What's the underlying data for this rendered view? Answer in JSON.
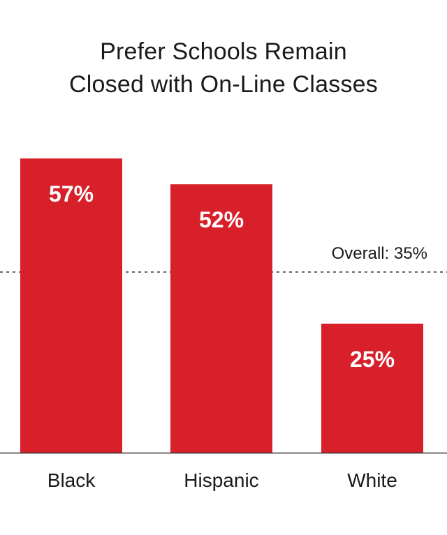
{
  "chart_data": {
    "type": "bar",
    "title": [
      "Prefer Schools Remain",
      "Closed with On-Line Classes"
    ],
    "categories": [
      "Black",
      "Hispanic",
      "White"
    ],
    "values": [
      57,
      52,
      25
    ],
    "value_labels": [
      "57%",
      "52%",
      "25%"
    ],
    "reference_line": {
      "value": 35,
      "label": "Overall: 35%",
      "style": "dashed"
    },
    "xlabel": "",
    "ylabel": "",
    "grid": false,
    "colors": {
      "bar": "#d7202a",
      "bar_label": "#ffffff",
      "text": "#1a1a1a",
      "axis": "#333333"
    }
  }
}
